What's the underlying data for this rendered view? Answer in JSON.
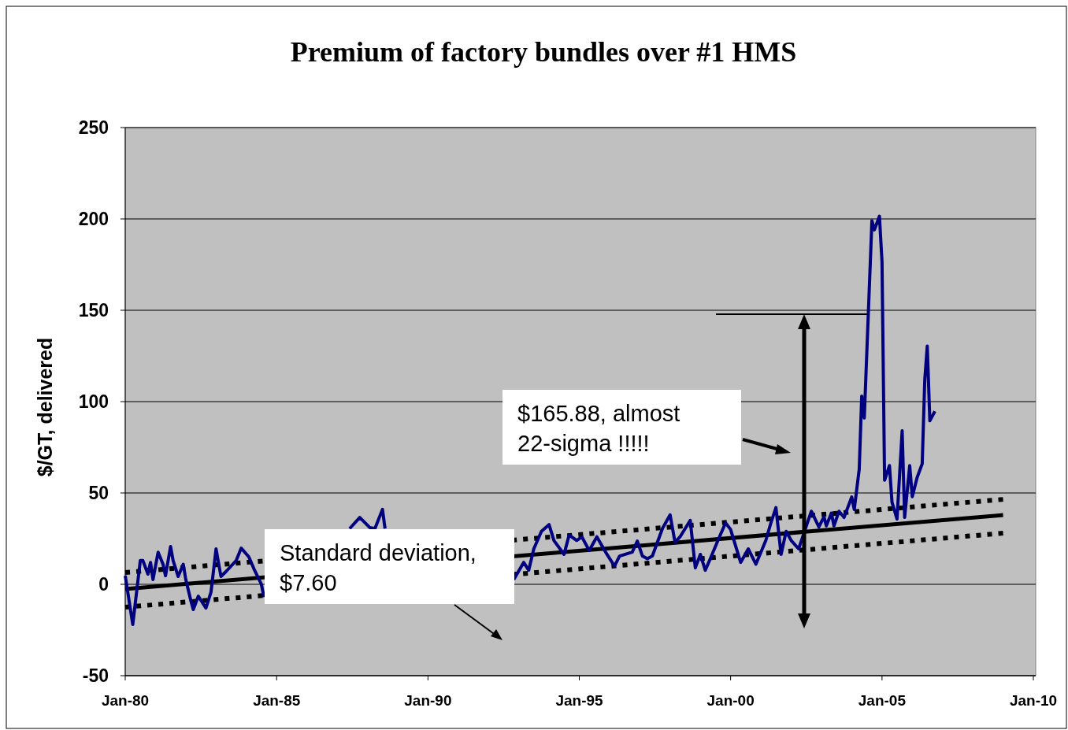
{
  "chart_data": {
    "type": "line",
    "title": "Premium of factory bundles over #1 HMS",
    "ylabel": "$/GT, delivered",
    "xlim": [
      "1980-01",
      "2010-01"
    ],
    "xticks": [
      {
        "value": "1980-01",
        "label": "Jan-80"
      },
      {
        "value": "1985-01",
        "label": "Jan-85"
      },
      {
        "value": "1990-01",
        "label": "Jan-90"
      },
      {
        "value": "1995-01",
        "label": "Jan-95"
      },
      {
        "value": "2000-01",
        "label": "Jan-00"
      },
      {
        "value": "2005-01",
        "label": "Jan-05"
      },
      {
        "value": "2010-01",
        "label": "Jan-10"
      }
    ],
    "ylim": [
      -50,
      250
    ],
    "yticks": [
      -50,
      0,
      50,
      100,
      150,
      200,
      250
    ],
    "grid": "y",
    "annotations": [
      "$165.88, almost 22-sigma !!!!!",
      "Standard deviation, $7.60"
    ],
    "series": [
      {
        "color": "#000080",
        "line_style": "solid",
        "x": [
          "1980-01",
          "1980-04",
          "1980-07",
          "1980-08",
          "1980-10",
          "1980-11",
          "1980-12",
          "1981-02",
          "1981-04",
          "1981-05",
          "1981-07",
          "1981-08",
          "1981-10",
          "1981-12",
          "1982-01",
          "1982-03",
          "1982-04",
          "1982-06",
          "1982-09",
          "1982-11",
          "1983-01",
          "1983-03",
          "1983-05",
          "1983-09",
          "1983-11",
          "1984-02",
          "1984-04",
          "1984-07",
          "1984-08",
          "1984-09",
          "1987-06",
          "1987-10",
          "1988-02",
          "1988-04",
          "1988-07",
          "1988-08",
          "1988-09",
          "1992-11",
          "1993-03",
          "1993-05",
          "1993-07",
          "1993-10",
          "1994-01",
          "1994-03",
          "1994-07",
          "1994-09",
          "1994-12",
          "1995-02",
          "1995-05",
          "1995-08",
          "1995-12",
          "1996-03",
          "1996-05",
          "1996-10",
          "1996-12",
          "1997-02",
          "1997-04",
          "1997-06",
          "1997-10",
          "1998-01",
          "1998-03",
          "1998-05",
          "1998-09",
          "1998-11",
          "1999-01",
          "1999-03",
          "1999-05",
          "1999-08",
          "1999-11",
          "2000-01",
          "2000-05",
          "2000-08",
          "2000-11",
          "2001-03",
          "2001-05",
          "2001-07",
          "2001-09",
          "2001-11",
          "2002-01",
          "2002-04",
          "2002-09",
          "2002-12",
          "2003-02",
          "2003-03",
          "2003-05",
          "2003-06",
          "2003-08",
          "2003-10",
          "2004-01",
          "2004-02",
          "2004-04",
          "2004-05",
          "2004-06",
          "2004-09",
          "2004-10",
          "2004-12",
          "2005-01",
          "2005-02",
          "2005-04",
          "2005-05",
          "2005-07",
          "2005-09",
          "2005-10",
          "2005-12",
          "2006-01",
          "2006-03",
          "2006-05",
          "2006-06",
          "2006-07",
          "2006-08",
          "2006-10"
        ],
        "values": [
          4.7,
          -22,
          13,
          13,
          5.6,
          12,
          2.6,
          17.6,
          11,
          4.7,
          20.7,
          13,
          4.3,
          11,
          2.6,
          -8.6,
          -13.8,
          -6.5,
          -13,
          -4.3,
          19.4,
          4.3,
          7,
          13,
          19.8,
          15,
          8.6,
          0,
          -7,
          null,
          30.5,
          36.6,
          31,
          30.5,
          41,
          30.5,
          null,
          2.6,
          12,
          7.7,
          19.4,
          29,
          32.7,
          24,
          16.4,
          27,
          24,
          26,
          18.5,
          26,
          16.4,
          10,
          15.5,
          17.6,
          23.7,
          15.5,
          14,
          15.5,
          30.6,
          38,
          23,
          26,
          35,
          9,
          16.4,
          7.7,
          14,
          24,
          33.6,
          30,
          12,
          19.4,
          11,
          24,
          33.6,
          42,
          16.4,
          29,
          24,
          19.4,
          40,
          31.4,
          37,
          32,
          39,
          32,
          40,
          36.6,
          47.8,
          41,
          63,
          103,
          91,
          199,
          194,
          201.5,
          176.5,
          57,
          65,
          45,
          35.7,
          84,
          36.6,
          65,
          48,
          58.5,
          66,
          112,
          130.4,
          89.5,
          94.7
        ]
      },
      {
        "color": "#000000",
        "line_style": "solid",
        "x": [
          "1980-01",
          "2009-01"
        ],
        "values": [
          -2.6,
          37.9
        ]
      },
      {
        "color": "#000000",
        "line_style": "dotted",
        "x": [
          "1980-01",
          "2009-01"
        ],
        "values": [
          6.5,
          46.5
        ]
      },
      {
        "color": "#000000",
        "line_style": "dotted",
        "x": [
          "1980-01",
          "2009-01"
        ],
        "values": [
          -12.5,
          28
        ]
      }
    ]
  }
}
